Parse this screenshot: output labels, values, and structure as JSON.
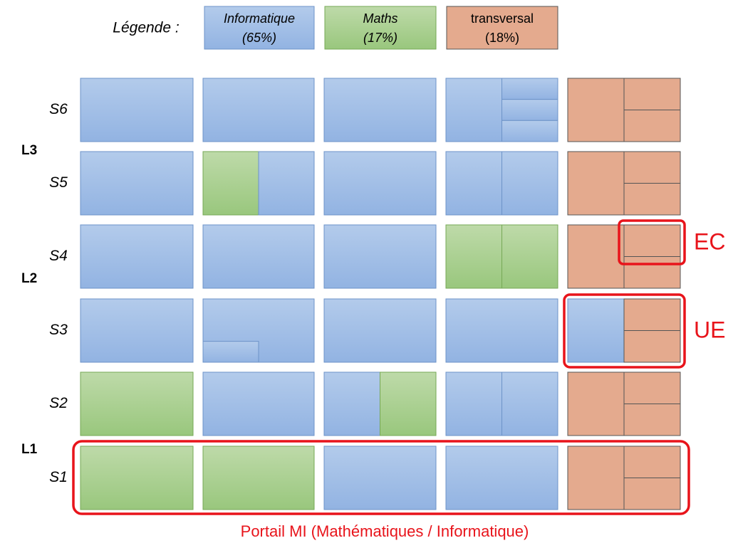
{
  "legend": {
    "title": "Légende :",
    "items": [
      {
        "name": "Informatique",
        "share": "(65%)"
      },
      {
        "name": "Maths",
        "share": "(17%)"
      },
      {
        "name": "transversal",
        "share": "(18%)"
      }
    ]
  },
  "years": [
    "L3",
    "L2",
    "L1"
  ],
  "semesters": [
    "S6",
    "S5",
    "S4",
    "S3",
    "S2",
    "S1"
  ],
  "annotations": {
    "ec": "EC",
    "ue": "UE",
    "portal": "Portail MI (Mathématiques / Informatique)"
  }
}
